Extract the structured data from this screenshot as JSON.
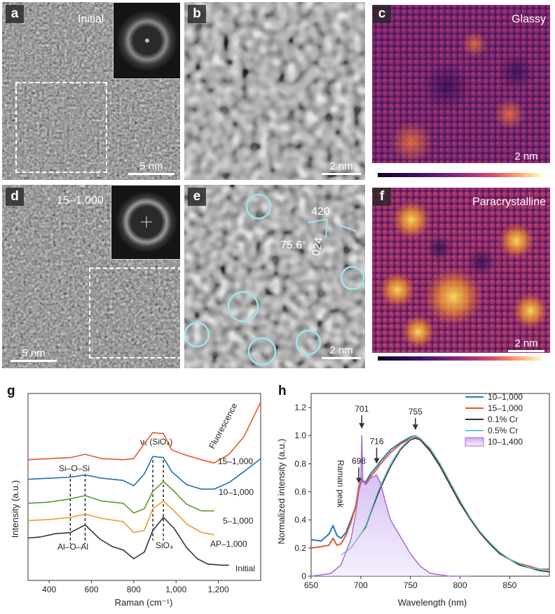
{
  "panels": {
    "a": {
      "label": "a",
      "tag": "Initial",
      "scalebar": "5 nm"
    },
    "b": {
      "label": "b",
      "scalebar": "2 nm"
    },
    "c": {
      "label": "c",
      "tag": "Glassy",
      "scalebar": "2 nm"
    },
    "d": {
      "label": "d",
      "tag": "15–1,000",
      "scalebar": "5 nm"
    },
    "e": {
      "label": "e",
      "scalebar": "2 nm",
      "miller_a": "420",
      "miller_b": "024",
      "angle": "75.6°"
    },
    "f": {
      "label": "f",
      "tag": "Paracrystalline",
      "scalebar": "2 nm"
    }
  },
  "colors": {
    "tem_bg": "#7b7b7b",
    "circle": "#9ee5f0",
    "colormap": [
      "#0d0221",
      "#3b0f6f",
      "#8c2981",
      "#de4968",
      "#fe9f6d",
      "#fcfdbf"
    ]
  },
  "chart_g": {
    "label": "g",
    "xlabel": "Raman (cm⁻¹)",
    "ylabel": "Intensity (a.u.)",
    "xticks": [
      "400",
      "600",
      "800",
      "1,000",
      "1,200"
    ],
    "annotations": {
      "sios": "Si–O–Si",
      "aloal": "Al–O–Al",
      "nu1": "ν₁ (SiO₄)",
      "sio4": "SiO₄",
      "fluor": "Fluorescence"
    },
    "series_labels": [
      "15–1,000",
      "10–1,000",
      "5–1,000",
      "AP–1,000",
      "Initial"
    ]
  },
  "chart_h": {
    "label": "h",
    "xlabel": "Wavelength (nm)",
    "ylabel": "Normalized intensity (a.u.)",
    "xticks": [
      "650",
      "700",
      "750",
      "800",
      "850"
    ],
    "yticks": [
      "0",
      "0.2",
      "0.4",
      "0.6",
      "0.8",
      "1.0",
      "1.2"
    ],
    "peak_labels": [
      "701",
      "755",
      "716",
      "698"
    ],
    "raman_peak": "Raman peak",
    "legend": [
      "10–1,000",
      "15–1,000",
      "0.1% Cr",
      "0.5% Cr",
      "10–1,400"
    ]
  },
  "chart_data": [
    {
      "type": "line",
      "title": "",
      "xlabel": "Raman (cm⁻¹)",
      "ylabel": "Intensity (a.u.)",
      "xlim": [
        300,
        1400
      ],
      "series": [
        {
          "name": "15–1,000",
          "color": "#e8562a",
          "x": [
            300,
            400,
            500,
            570,
            650,
            750,
            800,
            850,
            890,
            940,
            980,
            1050,
            1120,
            1180,
            1250,
            1320,
            1400
          ],
          "y": [
            6.55,
            6.6,
            6.65,
            6.8,
            6.6,
            6.55,
            6.6,
            7.3,
            7.8,
            7.75,
            7.0,
            6.75,
            6.55,
            6.4,
            6.8,
            7.6,
            9.2
          ]
        },
        {
          "name": "10–1,000",
          "color": "#1f6fb8",
          "x": [
            300,
            400,
            500,
            570,
            650,
            750,
            800,
            850,
            890,
            940,
            980,
            1050,
            1120,
            1180,
            1250,
            1320,
            1400
          ],
          "y": [
            5.65,
            5.7,
            5.75,
            5.85,
            5.7,
            5.6,
            5.35,
            5.9,
            6.7,
            6.65,
            6.0,
            5.4,
            5.2,
            5.2,
            5.5,
            6.0,
            6.6
          ]
        },
        {
          "name": "5–1,000",
          "color": "#5a9a2a",
          "x": [
            300,
            400,
            500,
            570,
            650,
            750,
            800,
            850,
            890,
            940,
            980,
            1050,
            1120,
            1180
          ],
          "y": [
            4.55,
            4.6,
            4.75,
            4.9,
            4.65,
            4.55,
            4.1,
            4.3,
            5.1,
            5.55,
            5.2,
            4.5,
            4.2,
            4.2
          ]
        },
        {
          "name": "AP–1,000",
          "color": "#f29a2e",
          "x": [
            300,
            400,
            500,
            570,
            650,
            750,
            800,
            850,
            890,
            940,
            980,
            1050,
            1120,
            1180
          ],
          "y": [
            3.75,
            3.8,
            3.9,
            4.05,
            3.85,
            3.7,
            3.2,
            3.3,
            4.3,
            4.65,
            4.3,
            3.6,
            3.2,
            3.1
          ]
        },
        {
          "name": "Initial",
          "color": "#333333",
          "x": [
            300,
            360,
            430,
            500,
            570,
            640,
            700,
            750,
            800,
            850,
            890,
            940,
            990,
            1050,
            1100,
            1150,
            1220,
            1250
          ],
          "y": [
            2.95,
            3.0,
            3.15,
            3.2,
            3.55,
            2.9,
            2.55,
            2.4,
            2.0,
            2.3,
            3.3,
            3.9,
            3.4,
            2.5,
            2.0,
            1.75,
            1.7,
            1.7
          ]
        }
      ]
    },
    {
      "type": "line",
      "title": "",
      "xlabel": "Wavelength (nm)",
      "ylabel": "Normalized intensity (a.u.)",
      "xlim": [
        650,
        890
      ],
      "ylim": [
        0,
        1.3
      ],
      "legend_position": "top-right",
      "series": [
        {
          "name": "10–1,000",
          "color": "#1f78c8",
          "x": [
            650,
            660,
            668,
            672,
            676,
            680,
            685,
            690,
            695,
            698,
            701,
            705,
            710,
            716,
            720,
            730,
            740,
            750,
            755,
            760,
            770,
            780,
            790,
            800,
            810,
            820,
            830,
            840,
            850,
            860,
            870,
            880,
            890
          ],
          "y": [
            0.26,
            0.25,
            0.3,
            0.36,
            0.29,
            0.27,
            0.31,
            0.4,
            0.5,
            0.62,
            0.68,
            0.67,
            0.73,
            0.78,
            0.82,
            0.9,
            0.95,
            0.99,
            1.0,
            0.98,
            0.9,
            0.79,
            0.66,
            0.53,
            0.41,
            0.31,
            0.23,
            0.16,
            0.12,
            0.08,
            0.06,
            0.05,
            0.04
          ]
        },
        {
          "name": "15–1,000",
          "color": "#e8562a",
          "x": [
            650,
            660,
            668,
            672,
            676,
            680,
            685,
            690,
            695,
            698,
            701,
            705,
            710,
            716,
            720,
            730,
            740,
            750,
            755,
            760,
            770,
            780,
            790,
            800,
            810,
            820,
            830,
            840,
            850,
            860,
            870,
            880,
            890
          ],
          "y": [
            0.2,
            0.21,
            0.22,
            0.27,
            0.22,
            0.23,
            0.29,
            0.38,
            0.5,
            0.64,
            0.69,
            0.66,
            0.71,
            0.76,
            0.8,
            0.88,
            0.94,
            0.98,
            0.99,
            0.97,
            0.89,
            0.78,
            0.65,
            0.52,
            0.41,
            0.31,
            0.23,
            0.17,
            0.12,
            0.09,
            0.07,
            0.05,
            0.05
          ]
        },
        {
          "name": "0.1% Cr",
          "color": "#333333",
          "x": [
            695,
            700,
            705,
            710,
            716,
            720,
            730,
            740,
            750,
            755,
            760,
            770,
            780,
            790,
            800,
            810,
            820,
            830,
            840,
            850,
            860,
            870,
            880,
            890
          ],
          "y": [
            0.25,
            0.3,
            0.35,
            0.45,
            0.56,
            0.63,
            0.78,
            0.9,
            0.97,
            0.98,
            0.97,
            0.89,
            0.78,
            0.65,
            0.52,
            0.41,
            0.31,
            0.23,
            0.16,
            0.12,
            0.08,
            0.06,
            0.04,
            0.03
          ]
        },
        {
          "name": "0.5% Cr",
          "color": "#6cc7d6",
          "x": [
            680,
            690,
            695,
            700,
            705,
            710,
            716,
            720,
            730,
            740,
            750,
            755,
            760,
            770,
            780,
            790,
            800,
            810,
            820,
            830,
            840,
            850,
            860,
            870,
            880,
            890
          ],
          "y": [
            0.15,
            0.2,
            0.25,
            0.3,
            0.36,
            0.46,
            0.58,
            0.65,
            0.8,
            0.91,
            0.98,
            1.0,
            0.98,
            0.91,
            0.8,
            0.67,
            0.54,
            0.42,
            0.32,
            0.24,
            0.17,
            0.12,
            0.09,
            0.06,
            0.05,
            0.04
          ]
        },
        {
          "name": "10–1,400",
          "color": "#a86ad9",
          "x": [
            650,
            670,
            680,
            690,
            695,
            698,
            700,
            701,
            702,
            705,
            710,
            716,
            720,
            725,
            730,
            740,
            750,
            760,
            770,
            780,
            790,
            800,
            810
          ],
          "y": [
            0.0,
            0.02,
            0.08,
            0.26,
            0.45,
            0.6,
            0.66,
            1.0,
            0.68,
            0.65,
            0.7,
            0.72,
            0.66,
            0.52,
            0.4,
            0.28,
            0.16,
            0.07,
            0.02,
            0.01,
            0.0,
            0.0,
            0.0
          ]
        }
      ]
    }
  ]
}
